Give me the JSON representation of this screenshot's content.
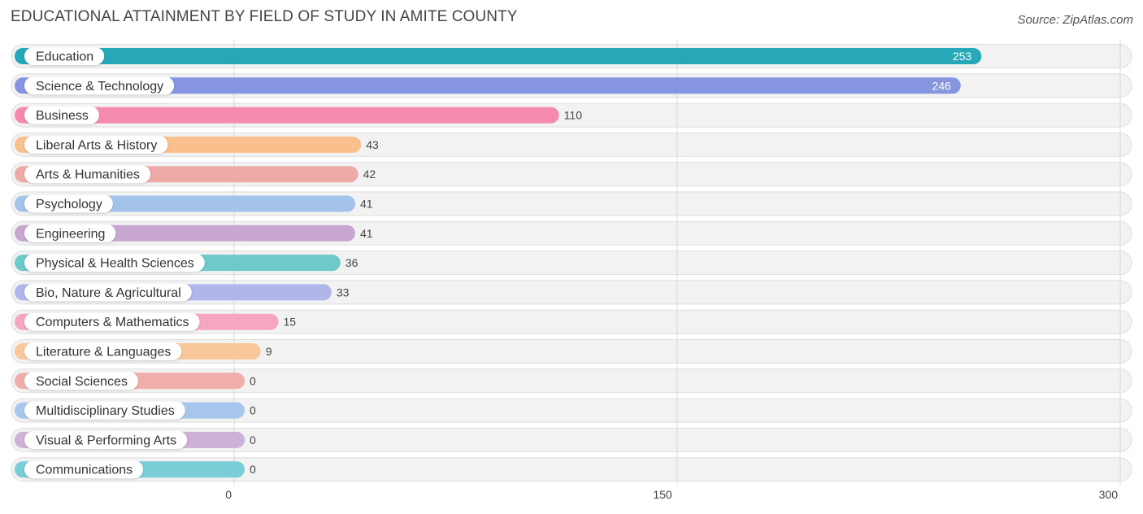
{
  "header": {
    "title": "EDUCATIONAL ATTAINMENT BY FIELD OF STUDY IN AMITE COUNTY",
    "source": "Source: ZipAtlas.com"
  },
  "chart_data": {
    "type": "bar",
    "orientation": "horizontal",
    "title": "EDUCATIONAL ATTAINMENT BY FIELD OF STUDY IN AMITE COUNTY",
    "xlim": [
      0,
      300
    ],
    "ticks": [
      0,
      150,
      300
    ],
    "tick_labels": [
      "0",
      "150",
      "300"
    ],
    "grid": true,
    "categories": [
      "Education",
      "Science & Technology",
      "Business",
      "Liberal Arts & History",
      "Arts & Humanities",
      "Psychology",
      "Engineering",
      "Physical & Health Sciences",
      "Bio, Nature & Agricultural",
      "Computers & Mathematics",
      "Literature & Languages",
      "Social Sciences",
      "Multidisciplinary Studies",
      "Visual & Performing Arts",
      "Communications"
    ],
    "values": [
      253,
      246,
      110,
      43,
      42,
      41,
      41,
      36,
      33,
      15,
      9,
      0,
      0,
      0,
      0
    ],
    "colors": [
      "#27a8b8",
      "#8595e0",
      "#f48aad",
      "#f9c08e",
      "#eeaaa6",
      "#a4c3ea",
      "#c7a7cf",
      "#6ec9ca",
      "#b0b5ea",
      "#f6a6c0",
      "#f8c89a",
      "#efaeaa",
      "#a8c6ec",
      "#cdb1d7",
      "#7accd6"
    ]
  }
}
